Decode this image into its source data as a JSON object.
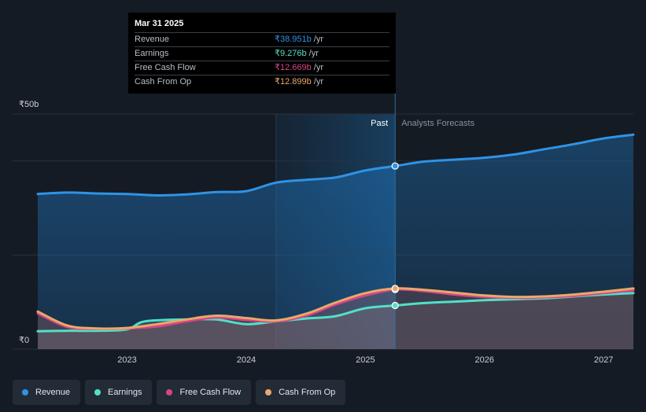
{
  "chart_data": {
    "type": "area",
    "y_axis": {
      "ylim": [
        0,
        50
      ],
      "top_label": "₹50b",
      "bottom_label": "₹0"
    },
    "x_axis": {
      "xlim": [
        2022.25,
        2027.25
      ],
      "tick_labels": [
        "2023",
        "2024",
        "2025",
        "2026",
        "2027"
      ],
      "ticks": [
        2023,
        2024,
        2025,
        2026,
        2027
      ]
    },
    "divider": {
      "x": 2025.25,
      "past_label": "Past",
      "forecast_label": "Analysts Forecasts",
      "highlight_start": 2024.25
    },
    "series": [
      {
        "name": "Revenue",
        "color": "#2f93e6",
        "points": [
          [
            2022.25,
            33
          ],
          [
            2022.5,
            33.3
          ],
          [
            2022.75,
            33.1
          ],
          [
            2023,
            33
          ],
          [
            2023.25,
            32.7
          ],
          [
            2023.5,
            32.9
          ],
          [
            2023.75,
            33.4
          ],
          [
            2024,
            33.6
          ],
          [
            2024.25,
            35.4
          ],
          [
            2024.5,
            36
          ],
          [
            2024.75,
            36.5
          ],
          [
            2025,
            38
          ],
          [
            2025.25,
            38.951
          ],
          [
            2025.5,
            39.9
          ],
          [
            2025.75,
            40.3
          ],
          [
            2026,
            40.7
          ],
          [
            2026.25,
            41.4
          ],
          [
            2026.5,
            42.5
          ],
          [
            2026.75,
            43.6
          ],
          [
            2027,
            44.8
          ],
          [
            2027.25,
            45.6
          ]
        ]
      },
      {
        "name": "Earnings",
        "color": "#52e0c6",
        "points": [
          [
            2022.25,
            3.8
          ],
          [
            2022.5,
            3.9
          ],
          [
            2022.75,
            3.9
          ],
          [
            2023,
            4.2
          ],
          [
            2023.15,
            5.9
          ],
          [
            2023.5,
            6.3
          ],
          [
            2023.75,
            6.3
          ],
          [
            2024,
            5.3
          ],
          [
            2024.25,
            5.9
          ],
          [
            2024.5,
            6.5
          ],
          [
            2024.75,
            7
          ],
          [
            2025,
            8.7
          ],
          [
            2025.25,
            9.276
          ],
          [
            2025.5,
            9.8
          ],
          [
            2025.75,
            10.1
          ],
          [
            2026,
            10.4
          ],
          [
            2026.25,
            10.6
          ],
          [
            2026.5,
            10.8
          ],
          [
            2026.75,
            11.2
          ],
          [
            2027,
            11.6
          ],
          [
            2027.25,
            11.9
          ]
        ]
      },
      {
        "name": "Free Cash Flow",
        "color": "#d64586",
        "points": [
          [
            2022.25,
            7.6
          ],
          [
            2022.5,
            4.7
          ],
          [
            2022.75,
            4.3
          ],
          [
            2023,
            4.4
          ],
          [
            2023.25,
            4.8
          ],
          [
            2023.5,
            5.9
          ],
          [
            2023.75,
            6.7
          ],
          [
            2024,
            6.2
          ],
          [
            2024.25,
            5.9
          ],
          [
            2024.5,
            7.1
          ],
          [
            2024.75,
            9.5
          ],
          [
            2025,
            11.4
          ],
          [
            2025.25,
            12.669
          ],
          [
            2025.5,
            12.3
          ],
          [
            2025.75,
            11.6
          ],
          [
            2026,
            11.1
          ],
          [
            2026.25,
            10.9
          ],
          [
            2026.5,
            11
          ],
          [
            2026.75,
            11.3
          ],
          [
            2027,
            11.9
          ],
          [
            2027.25,
            12.5
          ]
        ]
      },
      {
        "name": "Cash From Op",
        "color": "#e8a96a",
        "points": [
          [
            2022.25,
            8
          ],
          [
            2022.5,
            5
          ],
          [
            2022.75,
            4.4
          ],
          [
            2023,
            4.5
          ],
          [
            2023.25,
            5.3
          ],
          [
            2023.5,
            6.3
          ],
          [
            2023.75,
            7.1
          ],
          [
            2024,
            6.6
          ],
          [
            2024.25,
            6.1
          ],
          [
            2024.5,
            7.5
          ],
          [
            2024.75,
            9.9
          ],
          [
            2025,
            11.9
          ],
          [
            2025.25,
            12.899
          ],
          [
            2025.5,
            12.6
          ],
          [
            2025.75,
            12
          ],
          [
            2026,
            11.4
          ],
          [
            2026.25,
            11.1
          ],
          [
            2026.5,
            11.2
          ],
          [
            2026.75,
            11.6
          ],
          [
            2027,
            12.2
          ],
          [
            2027.25,
            12.9
          ]
        ]
      }
    ]
  },
  "tooltip": {
    "date": "Mar 31 2025",
    "rows": [
      {
        "name": "Revenue",
        "value": "₹38.951b",
        "unit": "/yr",
        "color": "#2f93e6"
      },
      {
        "name": "Earnings",
        "value": "₹9.276b",
        "unit": "/yr",
        "color": "#52e0c6"
      },
      {
        "name": "Free Cash Flow",
        "value": "₹12.669b",
        "unit": "/yr",
        "color": "#d64586"
      },
      {
        "name": "Cash From Op",
        "value": "₹12.899b",
        "unit": "/yr",
        "color": "#e8a96a"
      }
    ]
  },
  "legend": [
    {
      "label": "Revenue",
      "color": "#2f93e6"
    },
    {
      "label": "Earnings",
      "color": "#52e0c6"
    },
    {
      "label": "Free Cash Flow",
      "color": "#d64586"
    },
    {
      "label": "Cash From Op",
      "color": "#e8a96a"
    }
  ]
}
